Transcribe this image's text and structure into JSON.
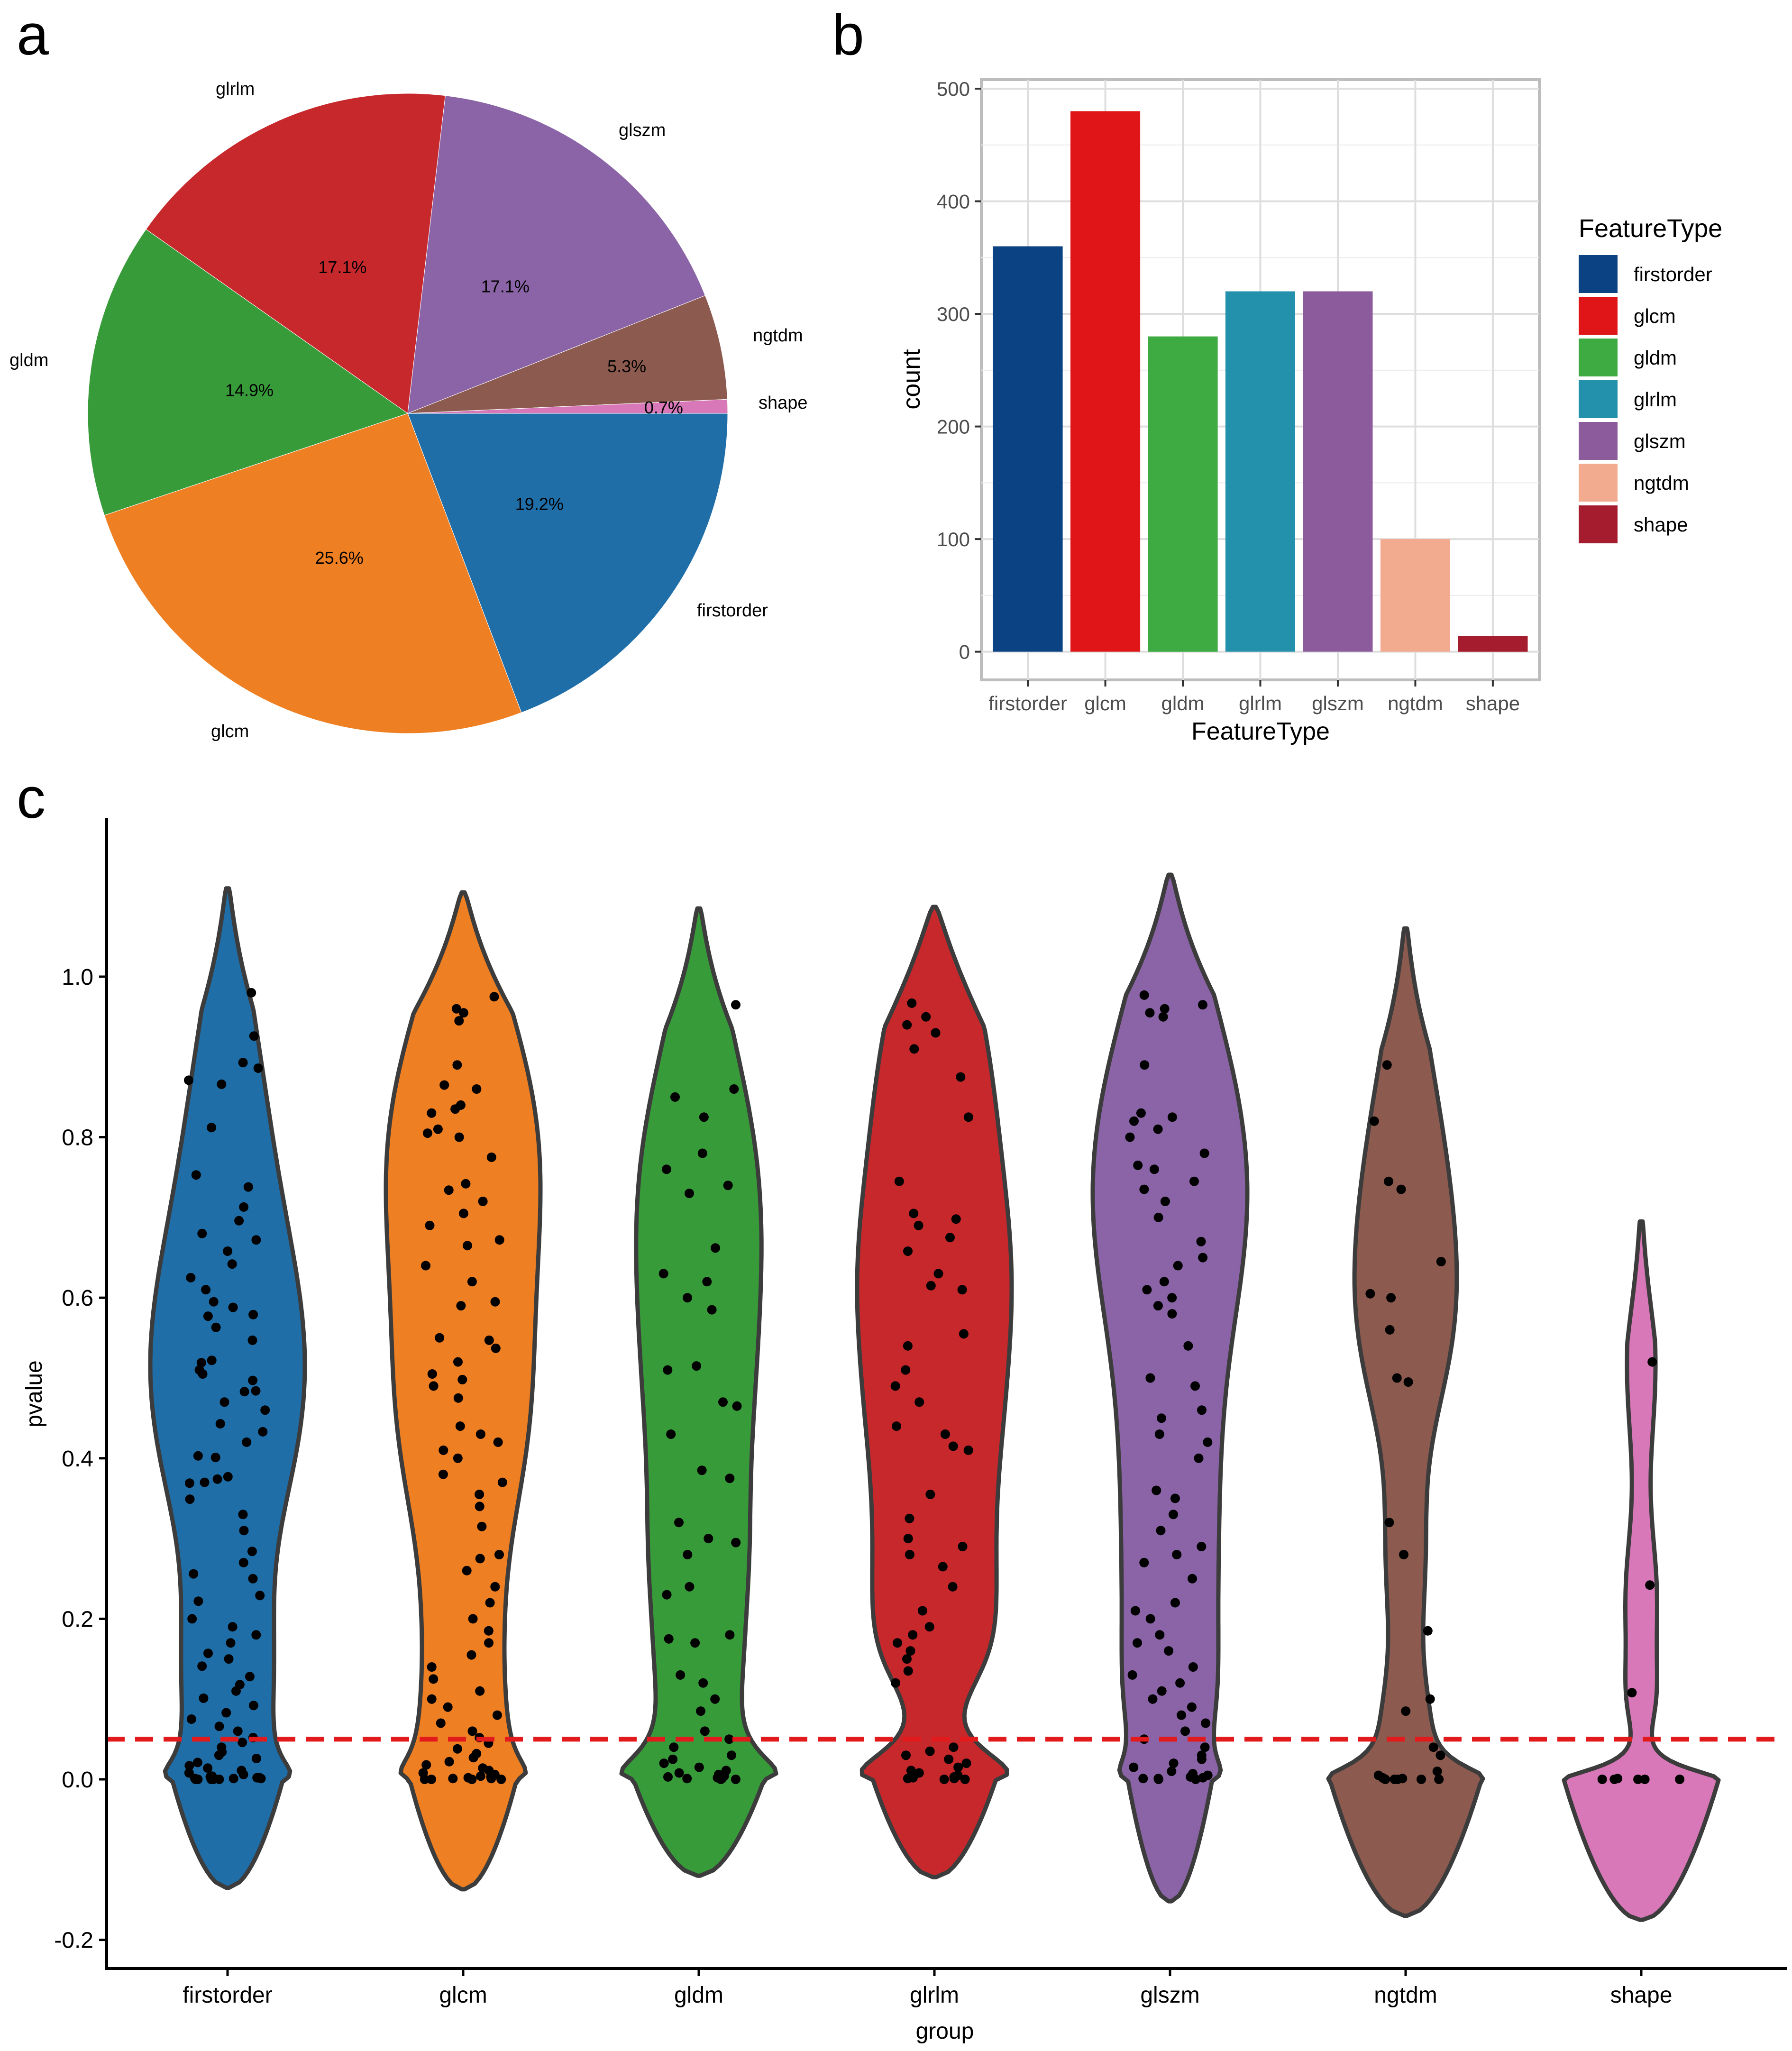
{
  "panels": {
    "a": "a",
    "b": "b",
    "c": "c"
  },
  "colors": {
    "firstorder": "#1f6ea8",
    "glcm": "#ee7f22",
    "gldm": "#389b3a",
    "glrlm": "#c7282c",
    "glszm": "#8a64a6",
    "ngtdm": "#8c5a4e",
    "shape": "#d878b8",
    "bar_firstorder": "#0b4283",
    "bar_glcm": "#df1518",
    "bar_gldm": "#3dab42",
    "bar_glrlm": "#2390ac",
    "bar_glszm": "#8b5b9b",
    "bar_ngtdm": "#f2ab8e",
    "bar_shape": "#a51c2f",
    "threshold": "#e31a1c"
  },
  "chart_data": [
    {
      "id": "a",
      "type": "pie",
      "slices": [
        {
          "label": "firstorder",
          "value": 19.2,
          "pct_label": "19.2%"
        },
        {
          "label": "glcm",
          "value": 25.6,
          "pct_label": "25.6%"
        },
        {
          "label": "gldm",
          "value": 14.9,
          "pct_label": "14.9%"
        },
        {
          "label": "glrlm",
          "value": 17.1,
          "pct_label": "17.1%"
        },
        {
          "label": "glszm",
          "value": 17.1,
          "pct_label": "17.1%"
        },
        {
          "label": "ngtdm",
          "value": 5.3,
          "pct_label": "5.3%"
        },
        {
          "label": "shape",
          "value": 0.7,
          "pct_label": "0.7%"
        }
      ]
    },
    {
      "id": "b",
      "type": "bar",
      "categories": [
        "firstorder",
        "glcm",
        "gldm",
        "glrlm",
        "glszm",
        "ngtdm",
        "shape"
      ],
      "values": [
        360,
        480,
        280,
        320,
        320,
        100,
        14
      ],
      "xlabel": "FeatureType",
      "ylabel": "count",
      "ylim": [
        -25,
        508
      ],
      "yticks": [
        0,
        100,
        200,
        300,
        400,
        500
      ],
      "grid": true,
      "legend": {
        "title": "FeatureType",
        "position": "right",
        "entries": [
          "firstorder",
          "glcm",
          "gldm",
          "glrlm",
          "glszm",
          "ngtdm",
          "shape"
        ]
      }
    },
    {
      "id": "c",
      "type": "violin",
      "categories": [
        "firstorder",
        "glcm",
        "gldm",
        "glrlm",
        "glszm",
        "ngtdm",
        "shape"
      ],
      "xlabel": "group",
      "ylabel": "pvalue",
      "ylim": [
        -0.24,
        1.2
      ],
      "yticks": [
        -0.2,
        0.0,
        0.2,
        0.4,
        0.6,
        0.8,
        1.0
      ],
      "tick_labels": [
        "-0.2",
        "0.0",
        "0.2",
        "0.4",
        "0.6",
        "0.8",
        "1.0"
      ],
      "threshold": 0.05,
      "violin_range": [
        [
          -0.135,
          1.11
        ],
        [
          -0.137,
          1.105
        ],
        [
          -0.12,
          1.085
        ],
        [
          -0.122,
          1.087
        ],
        [
          -0.152,
          1.127
        ],
        [
          -0.17,
          1.06
        ],
        [
          -0.175,
          0.695
        ]
      ],
      "points": [
        [
          0.98,
          0.926,
          0.893,
          0.886,
          0.871,
          0.866,
          0.812,
          0.753,
          0.738,
          0.713,
          0.696,
          0.68,
          0.672,
          0.658,
          0.642,
          0.625,
          0.61,
          0.595,
          0.588,
          0.579,
          0.577,
          0.563,
          0.547,
          0.522,
          0.519,
          0.51,
          0.505,
          0.497,
          0.484,
          0.483,
          0.47,
          0.46,
          0.443,
          0.433,
          0.42,
          0.403,
          0.401,
          0.377,
          0.374,
          0.37,
          0.369,
          0.349,
          0.33,
          0.31,
          0.284,
          0.27,
          0.256,
          0.25,
          0.229,
          0.222,
          0.2,
          0.19,
          0.18,
          0.17,
          0.157,
          0.15,
          0.141,
          0.128,
          0.118,
          0.11,
          0.101,
          0.092,
          0.083,
          0.075,
          0.066,
          0.06,
          0.052,
          0.046,
          0.04,
          0.034,
          0.03,
          0.026,
          0.021,
          0.017,
          0.014,
          0.011,
          0.008,
          0.006,
          0.004,
          0.003,
          0.002,
          0.002,
          0.001,
          0.001,
          0.001,
          0,
          0,
          0,
          0,
          0
        ],
        [
          0.975,
          0.96,
          0.955,
          0.945,
          0.89,
          0.865,
          0.86,
          0.84,
          0.835,
          0.83,
          0.81,
          0.805,
          0.8,
          0.775,
          0.742,
          0.734,
          0.72,
          0.705,
          0.69,
          0.672,
          0.665,
          0.64,
          0.62,
          0.595,
          0.59,
          0.55,
          0.547,
          0.537,
          0.52,
          0.505,
          0.498,
          0.49,
          0.475,
          0.44,
          0.43,
          0.42,
          0.41,
          0.4,
          0.38,
          0.37,
          0.355,
          0.34,
          0.315,
          0.28,
          0.275,
          0.26,
          0.24,
          0.22,
          0.2,
          0.185,
          0.17,
          0.155,
          0.14,
          0.125,
          0.11,
          0.1,
          0.09,
          0.08,
          0.07,
          0.06,
          0.052,
          0.045,
          0.038,
          0.032,
          0.027,
          0.022,
          0.018,
          0.014,
          0.011,
          0.008,
          0.006,
          0.004,
          0.003,
          0.002,
          0.001,
          0.001,
          0,
          0,
          0,
          0
        ],
        [
          0.965,
          0.86,
          0.85,
          0.825,
          0.78,
          0.76,
          0.74,
          0.73,
          0.662,
          0.63,
          0.62,
          0.6,
          0.585,
          0.515,
          0.51,
          0.47,
          0.465,
          0.43,
          0.385,
          0.375,
          0.32,
          0.3,
          0.295,
          0.28,
          0.24,
          0.23,
          0.18,
          0.175,
          0.17,
          0.13,
          0.12,
          0.1,
          0.085,
          0.06,
          0.05,
          0.04,
          0.03,
          0.025,
          0.02,
          0.015,
          0.011,
          0.008,
          0.006,
          0.004,
          0.003,
          0.002,
          0.001,
          0.001,
          0,
          0
        ],
        [
          0.967,
          0.95,
          0.94,
          0.93,
          0.91,
          0.875,
          0.825,
          0.745,
          0.705,
          0.698,
          0.69,
          0.675,
          0.658,
          0.63,
          0.615,
          0.61,
          0.555,
          0.54,
          0.51,
          0.49,
          0.47,
          0.44,
          0.43,
          0.415,
          0.41,
          0.355,
          0.325,
          0.3,
          0.29,
          0.28,
          0.265,
          0.24,
          0.21,
          0.19,
          0.18,
          0.17,
          0.16,
          0.15,
          0.135,
          0.12,
          0.04,
          0.035,
          0.03,
          0.025,
          0.02,
          0.015,
          0.011,
          0.008,
          0.005,
          0.003,
          0.002,
          0.001,
          0.001,
          0,
          0
        ],
        [
          0.977,
          0.965,
          0.96,
          0.955,
          0.95,
          0.89,
          0.83,
          0.825,
          0.82,
          0.81,
          0.8,
          0.78,
          0.765,
          0.76,
          0.745,
          0.735,
          0.72,
          0.7,
          0.67,
          0.65,
          0.64,
          0.62,
          0.61,
          0.6,
          0.59,
          0.58,
          0.54,
          0.5,
          0.49,
          0.46,
          0.45,
          0.43,
          0.42,
          0.4,
          0.36,
          0.35,
          0.33,
          0.31,
          0.29,
          0.28,
          0.27,
          0.25,
          0.22,
          0.21,
          0.2,
          0.18,
          0.17,
          0.16,
          0.14,
          0.13,
          0.12,
          0.11,
          0.1,
          0.09,
          0.08,
          0.07,
          0.06,
          0.05,
          0.04,
          0.03,
          0.025,
          0.02,
          0.015,
          0.01,
          0.007,
          0.005,
          0.003,
          0.002,
          0.001,
          0.001,
          0,
          0
        ],
        [
          0.89,
          0.82,
          0.745,
          0.735,
          0.645,
          0.605,
          0.6,
          0.56,
          0.5,
          0.495,
          0.32,
          0.28,
          0.185,
          0.1,
          0.085,
          0.04,
          0.03,
          0.01,
          0.005,
          0.002,
          0.001,
          0.001,
          0,
          0,
          0,
          0,
          0
        ],
        [
          0.52,
          0.242,
          0.108,
          0.001,
          0,
          0,
          0,
          0,
          0
        ]
      ]
    }
  ]
}
